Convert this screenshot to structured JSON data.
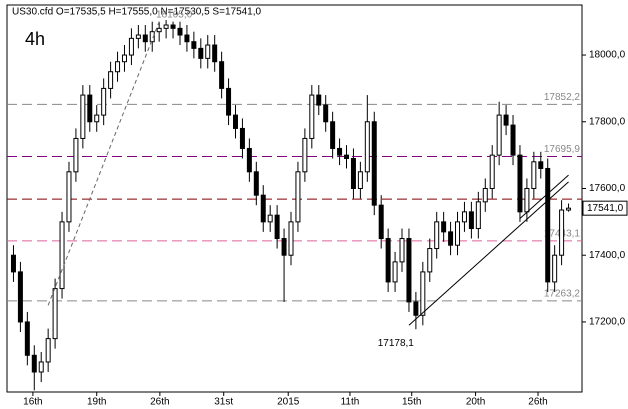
{
  "chart_data": {
    "type": "candlestick",
    "title": "US30.cfd O=17535,5 H=17555,0 N=17530,5 S=17541,0",
    "timeframe": "4h",
    "up_color": "#ffffff",
    "down_color": "#000000",
    "open": [
      17400,
      17350,
      17200,
      17100,
      17050,
      17080,
      17150,
      17300,
      17500,
      17650,
      17750,
      17880,
      17800,
      17820,
      17900,
      17950,
      17980,
      18000,
      18050,
      18060,
      18040,
      18070,
      18080,
      18090,
      18080,
      18060,
      18040,
      18020,
      17990,
      18030,
      17980,
      17900,
      17820,
      17780,
      17720,
      17650,
      17580,
      17500,
      17520,
      17450,
      17400,
      17500,
      17650,
      17750,
      17880,
      17850,
      17800,
      17720,
      17700,
      17690,
      17600,
      17650,
      17800,
      17550,
      17450,
      17320,
      17380,
      17450,
      17260,
      17220,
      17350,
      17420,
      17500,
      17470,
      17430,
      17500,
      17530,
      17480,
      17560,
      17600,
      17700,
      17820,
      17790,
      17700,
      17530,
      17600,
      17680,
      17660,
      17320,
      17400,
      17535.5
    ],
    "high": [
      17430,
      17380,
      17230,
      17130,
      17110,
      17180,
      17330,
      17530,
      17680,
      17780,
      17910,
      17910,
      17850,
      17930,
      17980,
      18010,
      18030,
      18080,
      18090,
      18090,
      18100,
      18100,
      18105,
      18100,
      18100,
      18090,
      18070,
      18050,
      18060,
      18060,
      18010,
      17930,
      17850,
      17810,
      17750,
      17680,
      17610,
      17550,
      17550,
      17480,
      17530,
      17680,
      17780,
      17910,
      17910,
      17880,
      17830,
      17750,
      17730,
      17720,
      17680,
      17880,
      17830,
      17580,
      17480,
      17410,
      17480,
      17480,
      17290,
      17380,
      17450,
      17530,
      17530,
      17500,
      17530,
      17560,
      17560,
      17590,
      17630,
      17730,
      17860,
      17850,
      17820,
      17730,
      17630,
      17710,
      17710,
      17690,
      17430,
      17565,
      17555
    ],
    "low": [
      17320,
      17170,
      17070,
      16995,
      17020,
      17050,
      17120,
      17270,
      17470,
      17620,
      17720,
      17770,
      17770,
      17790,
      17870,
      17920,
      17950,
      17970,
      18020,
      18010,
      18010,
      18040,
      18050,
      18050,
      18030,
      18010,
      17990,
      17960,
      17960,
      17950,
      17870,
      17790,
      17750,
      17690,
      17620,
      17550,
      17470,
      17470,
      17420,
      17260,
      17370,
      17470,
      17620,
      17720,
      17820,
      17770,
      17690,
      17670,
      17660,
      17570,
      17570,
      17620,
      17520,
      17420,
      17290,
      17290,
      17350,
      17230,
      17178.1,
      17190,
      17320,
      17390,
      17440,
      17400,
      17400,
      17470,
      17450,
      17450,
      17530,
      17570,
      17670,
      17760,
      17670,
      17500,
      17500,
      17570,
      17630,
      17290,
      17290,
      17370,
      17530.5
    ],
    "close": [
      17350,
      17200,
      17100,
      17050,
      17080,
      17150,
      17300,
      17500,
      17650,
      17750,
      17880,
      17800,
      17820,
      17900,
      17950,
      17980,
      18000,
      18050,
      18060,
      18040,
      18070,
      18080,
      18090,
      18080,
      18060,
      18040,
      18020,
      17990,
      18030,
      17980,
      17900,
      17820,
      17780,
      17720,
      17650,
      17580,
      17500,
      17520,
      17450,
      17400,
      17500,
      17650,
      17750,
      17880,
      17850,
      17800,
      17720,
      17700,
      17690,
      17600,
      17650,
      17800,
      17550,
      17450,
      17320,
      17380,
      17450,
      17260,
      17220,
      17350,
      17420,
      17500,
      17470,
      17430,
      17500,
      17530,
      17480,
      17560,
      17600,
      17700,
      17820,
      17790,
      17700,
      17530,
      17600,
      17680,
      17660,
      17320,
      17400,
      17535.5,
      17541
    ],
    "xlim": [
      0,
      81
    ],
    "xticks": [
      {
        "value": 2.8,
        "label": "16th"
      },
      {
        "value": 12,
        "label": "19th"
      },
      {
        "value": 21.1,
        "label": "26th"
      },
      {
        "value": 30.3,
        "label": "31st"
      },
      {
        "value": 39.6,
        "label": "2015"
      },
      {
        "value": 48.5,
        "label": "11th"
      },
      {
        "value": 57.4,
        "label": "15th"
      },
      {
        "value": 66.6,
        "label": "20th"
      },
      {
        "value": 75.6,
        "label": "26th"
      }
    ],
    "ylim": [
      16990,
      18150
    ],
    "yticks": [
      {
        "value": 17200,
        "label": "17200,0"
      },
      {
        "value": 17400,
        "label": "17400,0"
      },
      {
        "value": 17600,
        "label": "17600,0"
      },
      {
        "value": 17800,
        "label": "17800,0"
      },
      {
        "value": 18000,
        "label": "18000,0"
      }
    ],
    "levels": [
      {
        "value": 17852.2,
        "label": "17852,2",
        "color": "#888888"
      },
      {
        "value": 17695.9,
        "label": "17695,9",
        "color": "#800080"
      },
      {
        "value": 17568,
        "color": "#800000"
      },
      {
        "value": 17443.1,
        "label": "17443,1",
        "color": "#e0609a"
      },
      {
        "value": 17263.2,
        "label": "17263,2",
        "color": "#888888"
      }
    ],
    "trendlines": [
      {
        "x": [
          5,
          21
        ],
        "y": [
          17250,
          18100
        ],
        "dashed": true
      },
      {
        "x": [
          57,
          80
        ],
        "y": [
          17190,
          17620
        ],
        "dashed": false
      },
      {
        "x": [
          73,
          80
        ],
        "y": [
          17510,
          17640
        ],
        "dashed": false
      }
    ],
    "annotations": [
      {
        "x": 22,
        "y": 18105,
        "label": "18105,0"
      },
      {
        "x": 58,
        "y": 17178.1,
        "label": "17178,1"
      }
    ],
    "current_price": {
      "value": 17541,
      "label": "17541,0"
    }
  }
}
